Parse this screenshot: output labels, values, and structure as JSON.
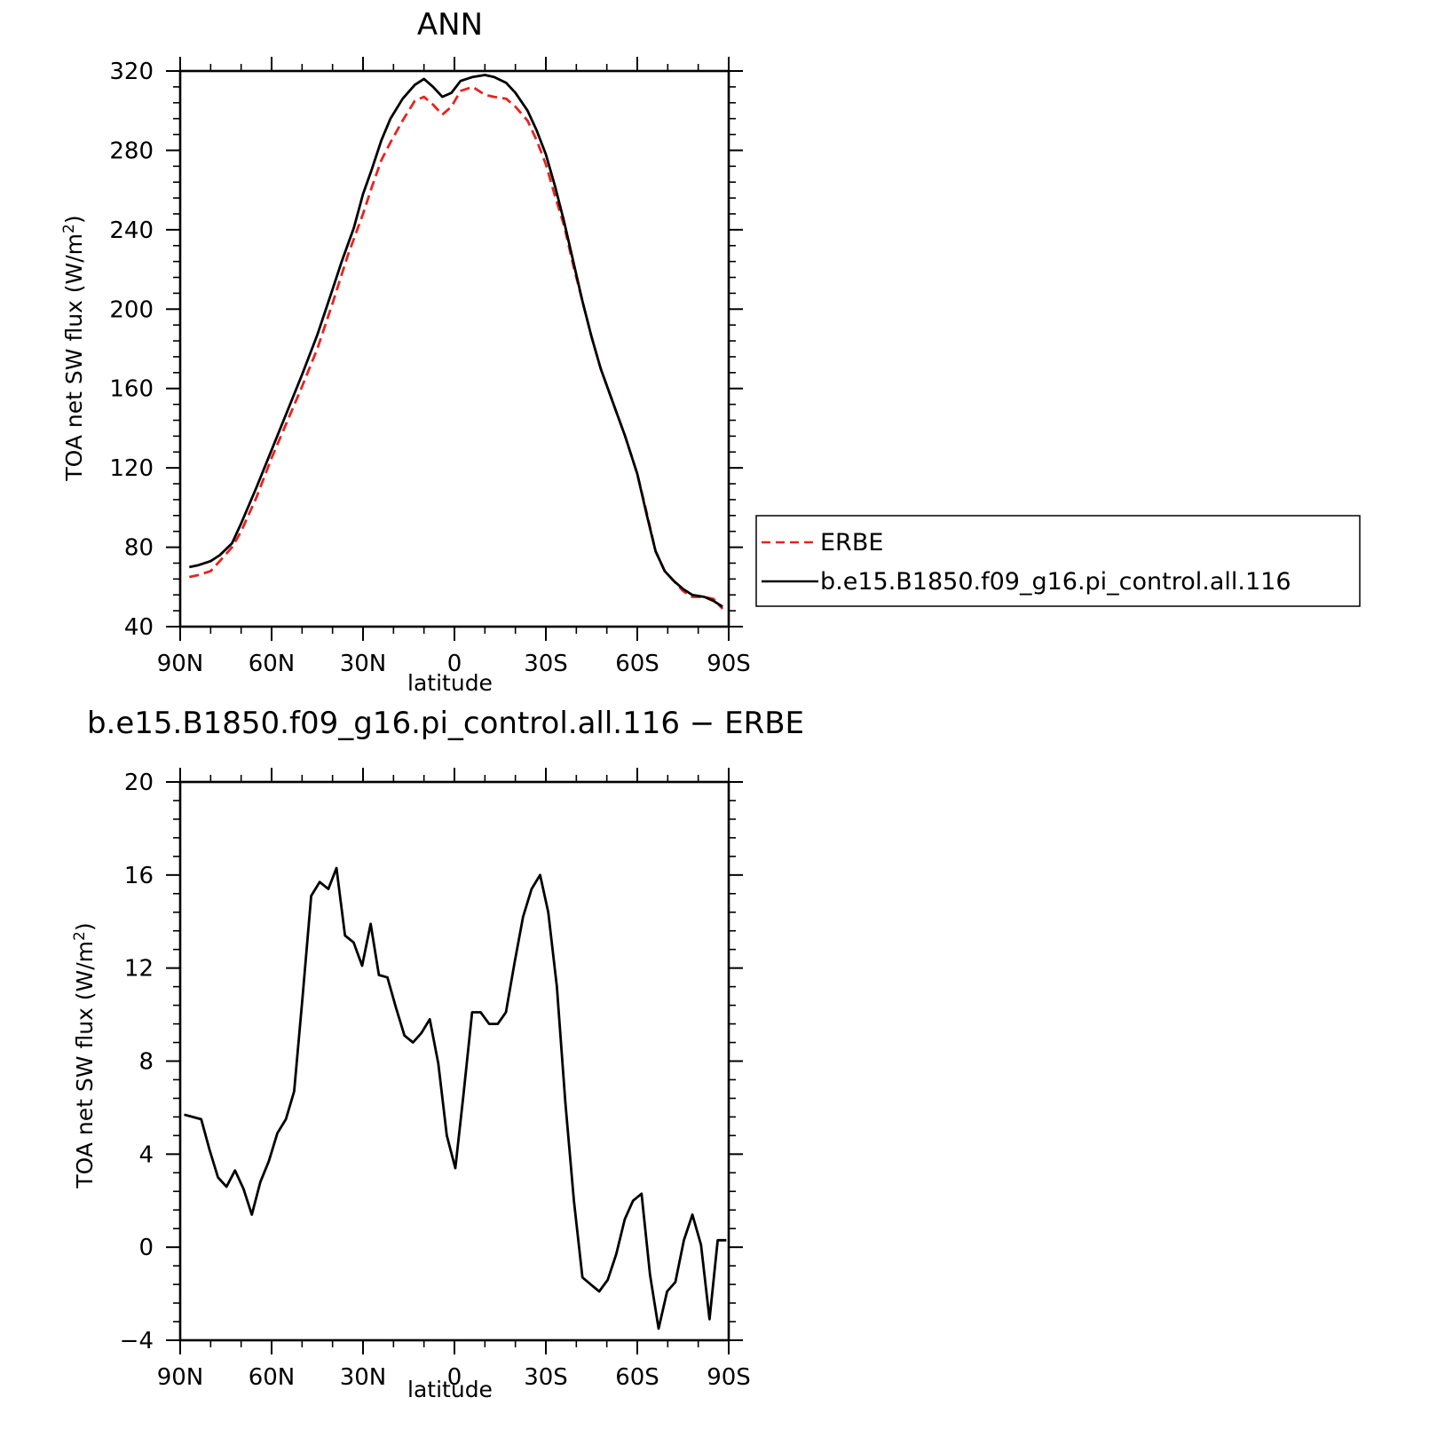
{
  "chart_data": [
    {
      "type": "line",
      "title": "ANN",
      "xlabel": "latitude",
      "ylabel": "TOA net SW flux (W/m",
      "ylabel_sup": "2",
      "ylabel_close": ")",
      "xticks": [
        {
          "value": 90,
          "label": "90N"
        },
        {
          "value": 60,
          "label": "60N"
        },
        {
          "value": 30,
          "label": "30N"
        },
        {
          "value": 0,
          "label": "0"
        },
        {
          "value": -30,
          "label": "30S"
        },
        {
          "value": -60,
          "label": "60S"
        },
        {
          "value": -90,
          "label": "90S"
        }
      ],
      "yticks": [
        40,
        80,
        120,
        160,
        200,
        240,
        280,
        320
      ],
      "xlim": [
        90,
        -90
      ],
      "ylim": [
        40,
        320
      ],
      "legend_position": "right",
      "series": [
        {
          "name": "ERBE",
          "color": "#e8231f",
          "dash": "dashed",
          "x": [
            87,
            84,
            80,
            77,
            73,
            70,
            65,
            60,
            55,
            50,
            45,
            40,
            35,
            30,
            27,
            24,
            21,
            17,
            13,
            10,
            7,
            4,
            1,
            -2,
            -6,
            -10,
            -13,
            -17,
            -20,
            -24,
            -27,
            -30,
            -33,
            -36,
            -39,
            -42,
            -45,
            -48,
            -52,
            -56,
            -60,
            -63,
            -66,
            -69,
            -72,
            -75,
            -78,
            -82,
            -85,
            -88
          ],
          "y": [
            65,
            66,
            68,
            73,
            80,
            88,
            105,
            125,
            143,
            161,
            180,
            203,
            227,
            248,
            262,
            275,
            284,
            295,
            305,
            307,
            303,
            298,
            302,
            310,
            312,
            308,
            307,
            306,
            302,
            295,
            285,
            273,
            257,
            242,
            222,
            204,
            186,
            170,
            153,
            136,
            117,
            98,
            78,
            68,
            63,
            58,
            55,
            55,
            54,
            49
          ]
        },
        {
          "name": "b.e15.B1850.f09_g16.pi_control.all.116",
          "color": "#000000",
          "dash": "solid",
          "x": [
            87,
            84,
            80,
            77,
            73,
            70,
            65,
            60,
            55,
            50,
            45,
            40,
            37,
            33,
            30,
            27,
            24,
            21,
            17,
            13,
            10,
            7,
            4,
            1,
            -2,
            -6,
            -10,
            -13,
            -17,
            -20,
            -24,
            -27,
            -30,
            -33,
            -36,
            -39,
            -42,
            -45,
            -48,
            -52,
            -56,
            -60,
            -63,
            -66,
            -69,
            -72,
            -75,
            -78,
            -82,
            -85,
            -88
          ],
          "y": [
            70,
            71,
            73,
            76,
            82,
            92,
            110,
            129,
            148,
            167,
            187,
            210,
            224,
            241,
            258,
            271,
            285,
            296,
            306,
            313,
            316,
            312,
            307,
            309,
            315,
            317,
            318,
            317,
            314,
            309,
            300,
            290,
            278,
            262,
            244,
            224,
            204,
            186,
            170,
            153,
            136,
            117,
            97,
            78,
            68,
            63,
            59,
            56,
            55,
            53,
            50
          ]
        }
      ]
    },
    {
      "type": "line",
      "title": "b.e15.B1850.f09_g16.pi_control.all.116 − ERBE",
      "xlabel": "latitude",
      "ylabel": "TOA net SW flux (W/m",
      "ylabel_sup": "2",
      "ylabel_close": ")",
      "xticks": [
        {
          "value": 90,
          "label": "90N"
        },
        {
          "value": 60,
          "label": "60N"
        },
        {
          "value": 30,
          "label": "30N"
        },
        {
          "value": 0,
          "label": "0"
        },
        {
          "value": -30,
          "label": "30S"
        },
        {
          "value": -60,
          "label": "60S"
        },
        {
          "value": -90,
          "label": "90S"
        }
      ],
      "yticks": [
        -4,
        0,
        4,
        8,
        12,
        16,
        20
      ],
      "ytick_labels": [
        "−4",
        "0",
        "4",
        "8",
        "12",
        "16",
        "20"
      ],
      "xlim": [
        90,
        -90
      ],
      "ylim": [
        -4,
        20
      ],
      "series": [
        {
          "color": "#000000",
          "dash": "solid",
          "x": [
            88.7,
            85.9,
            83.1,
            80.4,
            77.6,
            74.8,
            72.0,
            69.2,
            66.5,
            63.7,
            60.9,
            58.1,
            55.3,
            52.6,
            49.8,
            47.0,
            44.2,
            41.4,
            38.7,
            35.9,
            33.1,
            30.3,
            27.5,
            24.8,
            22.0,
            19.2,
            16.4,
            13.6,
            10.9,
            8.1,
            5.3,
            2.5,
            -0.3,
            -3.0,
            -5.8,
            -8.6,
            -11.4,
            -14.2,
            -16.9,
            -19.7,
            -22.5,
            -25.3,
            -28.1,
            -30.8,
            -33.6,
            -36.4,
            -39.2,
            -42.0,
            -44.7,
            -47.5,
            -50.3,
            -53.1,
            -55.9,
            -58.6,
            -61.4,
            -64.2,
            -67.0,
            -69.8,
            -72.5,
            -75.3,
            -78.1,
            -80.9,
            -83.7,
            -86.4,
            -89.2
          ],
          "y": [
            5.7,
            5.6,
            5.5,
            4.2,
            3.0,
            2.6,
            3.3,
            2.5,
            1.4,
            2.8,
            3.7,
            4.9,
            5.5,
            6.7,
            10.8,
            15.1,
            15.7,
            15.4,
            16.3,
            13.4,
            13.1,
            12.1,
            13.9,
            11.7,
            11.6,
            10.3,
            9.1,
            8.8,
            9.2,
            9.8,
            7.9,
            4.8,
            3.4,
            6.6,
            10.1,
            10.1,
            9.6,
            9.6,
            10.1,
            12.2,
            14.2,
            15.4,
            16.0,
            14.4,
            11.2,
            6.2,
            2.0,
            -1.3,
            -1.6,
            -1.9,
            -1.4,
            -0.3,
            1.2,
            2.0,
            2.3,
            -1.2,
            -3.5,
            -1.9,
            -1.5,
            0.3,
            1.4,
            0.1,
            -3.1,
            0.3,
            0.3
          ]
        }
      ]
    }
  ]
}
